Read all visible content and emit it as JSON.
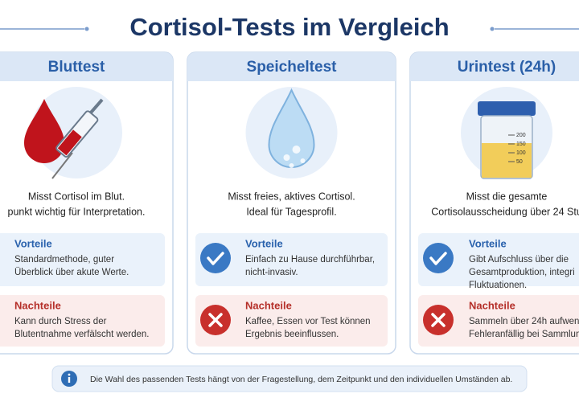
{
  "header": {
    "title": "Cortisol-Tests im Vergleich"
  },
  "cards": [
    {
      "title": "Bluttest",
      "description": [
        "Misst Cortisol im Blut.",
        "punkt wichtig für Interpretation."
      ],
      "pros": {
        "heading": "Vorteile",
        "lines": [
          "Standardmethode, guter",
          "Überblick über akute Werte."
        ]
      },
      "cons": {
        "heading": "Nachteile",
        "lines": [
          "Kann durch Stress der",
          "Blutentnahme verfälscht werden."
        ]
      }
    },
    {
      "title": "Speicheltest",
      "description": [
        "Misst freies, aktives Cortisol.",
        "Ideal für Tagesprofil."
      ],
      "pros": {
        "heading": "Vorteile",
        "lines": [
          "Einfach zu Hause durchführbar,",
          "nicht-invasiv."
        ]
      },
      "cons": {
        "heading": "Nachteile",
        "lines": [
          "Kaffee, Essen vor Test können",
          "Ergebnis beeinflussen."
        ]
      }
    },
    {
      "title": "Urintest (24h)",
      "description": [
        "Misst die gesamte",
        "Cortisolausscheidung über 24 Stu"
      ],
      "scale": [
        200,
        150,
        100,
        50
      ],
      "pros": {
        "heading": "Vorteile",
        "lines": [
          "Gibt Aufschluss über die",
          "Gesamtproduktion, integri",
          "Fluktuationen."
        ]
      },
      "cons": {
        "heading": "Nachteile",
        "lines": [
          "Sammeln über 24h aufwen",
          "Fehleranfällig bei Sammlun"
        ]
      }
    }
  ],
  "footer": {
    "note": "Die Wahl des passenden Tests hängt von der Fragestellung, dem Zeitpunkt und den individuellen Umständen ab."
  }
}
